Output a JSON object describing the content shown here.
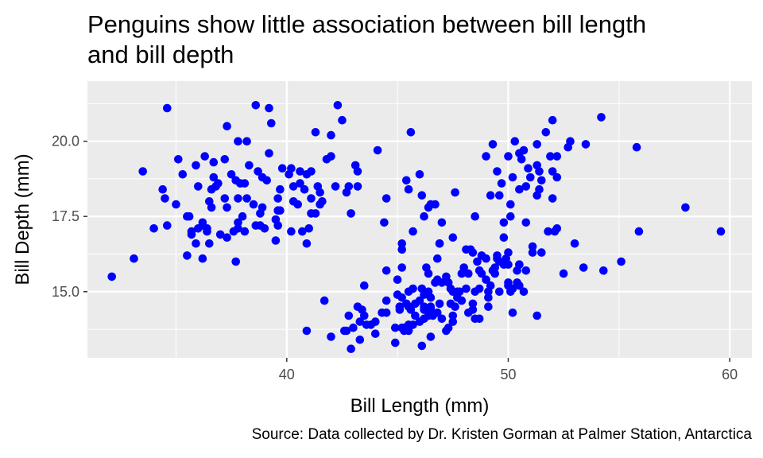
{
  "chart_data": {
    "type": "scatter",
    "title": "Penguins show little association between bill length\n and bill depth",
    "caption": "Source: Data collected by Dr. Kristen Gorman at Palmer Station, Antarctica",
    "xlabel": "Bill Length (mm)",
    "ylabel": "Bill Depth (mm)",
    "xlim": [
      31.0,
      61.0
    ],
    "ylim": [
      12.8,
      22.0
    ],
    "xticks": [
      {
        "value": 40,
        "label": "40"
      },
      {
        "value": 50,
        "label": "50"
      },
      {
        "value": 60,
        "label": "60"
      }
    ],
    "yticks": [
      {
        "value": 15.0,
        "label": "15.0"
      },
      {
        "value": 17.5,
        "label": "17.5"
      },
      {
        "value": 20.0,
        "label": "20.0"
      }
    ],
    "grid": true,
    "point_color": "#0000ff",
    "panel_background": "#ebebeb",
    "points": [
      [
        32.1,
        15.5
      ],
      [
        33.1,
        16.1
      ],
      [
        33.5,
        19.0
      ],
      [
        34.0,
        17.1
      ],
      [
        34.4,
        18.4
      ],
      [
        34.5,
        18.1
      ],
      [
        34.6,
        21.1
      ],
      [
        34.6,
        17.2
      ],
      [
        35.0,
        17.9
      ],
      [
        35.1,
        19.4
      ],
      [
        35.3,
        18.9
      ],
      [
        35.5,
        16.2
      ],
      [
        35.5,
        17.5
      ],
      [
        35.6,
        17.5
      ],
      [
        35.7,
        16.9
      ],
      [
        35.7,
        17.0
      ],
      [
        35.9,
        16.6
      ],
      [
        35.9,
        19.2
      ],
      [
        36.0,
        17.1
      ],
      [
        36.0,
        18.5
      ],
      [
        36.2,
        16.1
      ],
      [
        36.2,
        17.2
      ],
      [
        36.2,
        17.3
      ],
      [
        36.3,
        19.5
      ],
      [
        36.4,
        17.0
      ],
      [
        36.5,
        16.6
      ],
      [
        36.5,
        18.0
      ],
      [
        36.6,
        17.8
      ],
      [
        36.6,
        18.4
      ],
      [
        36.7,
        19.3
      ],
      [
        36.7,
        18.8
      ],
      [
        36.8,
        18.5
      ],
      [
        36.9,
        18.6
      ],
      [
        37.0,
        16.9
      ],
      [
        37.2,
        18.1
      ],
      [
        37.2,
        19.4
      ],
      [
        37.3,
        17.8
      ],
      [
        37.3,
        16.8
      ],
      [
        37.3,
        20.5
      ],
      [
        37.5,
        18.9
      ],
      [
        37.6,
        17.0
      ],
      [
        37.7,
        16.0
      ],
      [
        37.7,
        18.7
      ],
      [
        37.8,
        17.1
      ],
      [
        37.8,
        18.1
      ],
      [
        37.8,
        20.0
      ],
      [
        37.9,
        18.6
      ],
      [
        38.1,
        17.0
      ],
      [
        38.1,
        18.6
      ],
      [
        38.2,
        18.1
      ],
      [
        38.2,
        20.0
      ],
      [
        38.3,
        19.2
      ],
      [
        38.5,
        17.9
      ],
      [
        38.6,
        17.2
      ],
      [
        38.6,
        21.2
      ],
      [
        38.7,
        19.0
      ],
      [
        38.8,
        17.2
      ],
      [
        38.8,
        17.6
      ],
      [
        38.9,
        17.8
      ],
      [
        38.9,
        18.8
      ],
      [
        39.0,
        17.1
      ],
      [
        39.1,
        18.7
      ],
      [
        39.2,
        19.6
      ],
      [
        39.2,
        21.1
      ],
      [
        39.3,
        20.6
      ],
      [
        39.5,
        16.7
      ],
      [
        39.5,
        17.4
      ],
      [
        39.6,
        17.7
      ],
      [
        39.6,
        18.1
      ],
      [
        39.7,
        17.7
      ],
      [
        39.7,
        18.4
      ],
      [
        39.8,
        19.1
      ],
      [
        40.1,
        18.9
      ],
      [
        40.2,
        17.0
      ],
      [
        40.2,
        19.1
      ],
      [
        40.3,
        18.0
      ],
      [
        40.5,
        17.9
      ],
      [
        40.6,
        18.6
      ],
      [
        40.6,
        19.0
      ],
      [
        40.7,
        17.0
      ],
      [
        40.8,
        18.4
      ],
      [
        40.9,
        16.6
      ],
      [
        41.0,
        17.1
      ],
      [
        41.1,
        17.6
      ],
      [
        41.1,
        18.1
      ],
      [
        41.1,
        19.0
      ],
      [
        41.3,
        17.6
      ],
      [
        41.3,
        20.3
      ],
      [
        41.4,
        18.5
      ],
      [
        41.5,
        17.9
      ],
      [
        41.6,
        18.0
      ],
      [
        41.8,
        19.4
      ],
      [
        42.0,
        20.2
      ],
      [
        42.2,
        18.5
      ],
      [
        42.3,
        21.2
      ],
      [
        42.5,
        20.7
      ],
      [
        42.7,
        18.3
      ],
      [
        42.8,
        18.5
      ],
      [
        42.9,
        17.6
      ],
      [
        43.1,
        19.2
      ],
      [
        43.2,
        18.5
      ],
      [
        44.1,
        19.7
      ],
      [
        45.6,
        20.3
      ],
      [
        36.4,
        17.1
      ],
      [
        37.8,
        17.3
      ],
      [
        38.0,
        17.5
      ],
      [
        39.6,
        17.2
      ],
      [
        40.9,
        18.9
      ],
      [
        41.5,
        18.3
      ],
      [
        42.0,
        19.5
      ],
      [
        40.3,
        18.5
      ],
      [
        43.2,
        19.0
      ],
      [
        44.5,
        18.1
      ],
      [
        45.5,
        18.4
      ],
      [
        46.0,
        18.9
      ],
      [
        46.4,
        17.8
      ],
      [
        46.9,
        16.6
      ],
      [
        47.0,
        17.3
      ],
      [
        47.5,
        16.8
      ],
      [
        48.5,
        17.5
      ],
      [
        49.0,
        19.5
      ],
      [
        49.3,
        19.9
      ],
      [
        49.5,
        19.0
      ],
      [
        49.7,
        18.6
      ],
      [
        50.0,
        19.5
      ],
      [
        50.2,
        18.8
      ],
      [
        50.3,
        20.0
      ],
      [
        50.5,
        18.4
      ],
      [
        50.6,
        19.4
      ],
      [
        50.7,
        19.7
      ],
      [
        50.8,
        18.5
      ],
      [
        50.9,
        19.1
      ],
      [
        51.0,
        18.8
      ],
      [
        51.3,
        19.2
      ],
      [
        51.3,
        19.9
      ],
      [
        51.4,
        19.0
      ],
      [
        51.5,
        18.7
      ],
      [
        51.7,
        20.3
      ],
      [
        51.9,
        19.5
      ],
      [
        52.0,
        18.1
      ],
      [
        52.0,
        19.0
      ],
      [
        52.0,
        20.7
      ],
      [
        52.2,
        18.8
      ],
      [
        52.7,
        19.8
      ],
      [
        52.8,
        20.0
      ],
      [
        53.5,
        19.9
      ],
      [
        54.2,
        20.8
      ],
      [
        55.8,
        19.8
      ],
      [
        45.2,
        16.6
      ],
      [
        45.4,
        18.7
      ],
      [
        46.1,
        18.2
      ],
      [
        46.5,
        17.9
      ],
      [
        46.7,
        17.9
      ],
      [
        47.6,
        18.3
      ],
      [
        48.1,
        16.4
      ],
      [
        49.2,
        18.2
      ],
      [
        49.6,
        18.2
      ],
      [
        50.1,
        17.9
      ],
      [
        50.5,
        19.6
      ],
      [
        51.3,
        18.2
      ],
      [
        51.4,
        18.4
      ],
      [
        52.2,
        19.5
      ],
      [
        58.0,
        17.8
      ],
      [
        45.7,
        17.0
      ],
      [
        46.2,
        17.5
      ],
      [
        48.3,
        16.4
      ],
      [
        49.8,
        17.3
      ],
      [
        50.1,
        17.5
      ],
      [
        51.8,
        17.0
      ],
      [
        53.0,
        16.6
      ],
      [
        46.1,
        13.2
      ],
      [
        50.0,
        16.3
      ],
      [
        48.7,
        14.1
      ],
      [
        50.0,
        15.2
      ],
      [
        47.6,
        14.5
      ],
      [
        46.5,
        13.5
      ],
      [
        45.4,
        14.6
      ],
      [
        46.7,
        15.3
      ],
      [
        43.3,
        13.4
      ],
      [
        46.8,
        15.4
      ],
      [
        40.9,
        13.7
      ],
      [
        49.0,
        16.1
      ],
      [
        45.5,
        13.7
      ],
      [
        48.4,
        14.6
      ],
      [
        45.8,
        14.6
      ],
      [
        49.3,
        15.7
      ],
      [
        42.0,
        13.5
      ],
      [
        49.2,
        15.2
      ],
      [
        46.2,
        14.5
      ],
      [
        48.7,
        15.1
      ],
      [
        50.2,
        14.3
      ],
      [
        45.1,
        14.5
      ],
      [
        46.5,
        14.5
      ],
      [
        46.3,
        15.8
      ],
      [
        42.9,
        13.1
      ],
      [
        46.1,
        15.1
      ],
      [
        44.5,
        14.3
      ],
      [
        47.8,
        15.0
      ],
      [
        48.2,
        14.3
      ],
      [
        50.0,
        15.3
      ],
      [
        47.3,
        15.3
      ],
      [
        42.8,
        14.2
      ],
      [
        45.1,
        14.5
      ],
      [
        59.6,
        17.0
      ],
      [
        49.1,
        14.8
      ],
      [
        48.4,
        16.3
      ],
      [
        42.6,
        13.7
      ],
      [
        44.4,
        17.3
      ],
      [
        44.0,
        13.6
      ],
      [
        48.7,
        15.7
      ],
      [
        42.7,
        13.7
      ],
      [
        49.6,
        16.0
      ],
      [
        45.3,
        13.7
      ],
      [
        49.6,
        15.0
      ],
      [
        50.5,
        15.9
      ],
      [
        43.6,
        13.9
      ],
      [
        45.5,
        13.9
      ],
      [
        50.5,
        15.9
      ],
      [
        44.9,
        13.3
      ],
      [
        45.2,
        15.8
      ],
      [
        46.6,
        14.2
      ],
      [
        48.5,
        14.1
      ],
      [
        45.1,
        14.4
      ],
      [
        50.1,
        15.0
      ],
      [
        46.5,
        14.4
      ],
      [
        45.0,
        15.4
      ],
      [
        43.8,
        13.9
      ],
      [
        45.5,
        15.0
      ],
      [
        43.2,
        14.5
      ],
      [
        50.4,
        15.3
      ],
      [
        45.3,
        13.8
      ],
      [
        46.2,
        14.9
      ],
      [
        45.7,
        13.9
      ],
      [
        54.3,
        15.7
      ],
      [
        45.8,
        14.2
      ],
      [
        49.8,
        16.8
      ],
      [
        46.2,
        14.4
      ],
      [
        49.5,
        16.2
      ],
      [
        43.5,
        14.2
      ],
      [
        50.7,
        15.0
      ],
      [
        47.7,
        15.0
      ],
      [
        46.4,
        15.6
      ],
      [
        48.2,
        15.6
      ],
      [
        46.5,
        14.8
      ],
      [
        46.4,
        15.0
      ],
      [
        48.6,
        16.0
      ],
      [
        47.5,
        14.2
      ],
      [
        51.1,
        16.3
      ],
      [
        45.2,
        13.8
      ],
      [
        45.2,
        16.4
      ],
      [
        49.1,
        14.5
      ],
      [
        52.5,
        15.6
      ],
      [
        47.4,
        14.6
      ],
      [
        50.0,
        15.9
      ],
      [
        44.9,
        13.8
      ],
      [
        50.8,
        17.3
      ],
      [
        43.4,
        14.4
      ],
      [
        51.3,
        14.2
      ],
      [
        47.5,
        14.0
      ],
      [
        52.1,
        17.0
      ],
      [
        47.5,
        15.0
      ],
      [
        52.2,
        17.1
      ],
      [
        45.5,
        14.5
      ],
      [
        49.5,
        16.1
      ],
      [
        44.5,
        14.7
      ],
      [
        50.8,
        15.7
      ],
      [
        49.4,
        15.8
      ],
      [
        46.9,
        14.6
      ],
      [
        48.4,
        14.4
      ],
      [
        51.1,
        16.5
      ],
      [
        48.5,
        15.0
      ],
      [
        55.9,
        17.0
      ],
      [
        47.2,
        15.5
      ],
      [
        49.1,
        15.0
      ],
      [
        47.3,
        13.8
      ],
      [
        46.8,
        16.1
      ],
      [
        41.7,
        14.7
      ],
      [
        53.4,
        15.8
      ],
      [
        43.3,
        14.0
      ],
      [
        48.1,
        15.1
      ],
      [
        50.5,
        15.2
      ],
      [
        49.8,
        15.9
      ],
      [
        43.5,
        15.2
      ],
      [
        51.5,
        16.3
      ],
      [
        46.2,
        14.1
      ],
      [
        55.1,
        16.0
      ],
      [
        44.5,
        15.7
      ],
      [
        48.8,
        16.2
      ],
      [
        47.2,
        13.7
      ],
      [
        46.8,
        14.3
      ],
      [
        50.4,
        15.7
      ],
      [
        45.2,
        14.8
      ],
      [
        49.9,
        16.1
      ],
      [
        46.9,
        16.6
      ],
      [
        45.6,
        14.4
      ],
      [
        47.9,
        14.7
      ],
      [
        49.4,
        15.6
      ],
      [
        46.0,
        14.0
      ],
      [
        47.0,
        15.3
      ],
      [
        45.7,
        15.1
      ],
      [
        48.8,
        15.6
      ],
      [
        47.4,
        15.1
      ],
      [
        44.3,
        14.3
      ],
      [
        43.0,
        13.8
      ],
      [
        47.0,
        14.1
      ],
      [
        46.4,
        14.2
      ],
      [
        44.0,
        14.0
      ],
      [
        47.7,
        14.8
      ],
      [
        48.0,
        15.8
      ],
      [
        46.0,
        14.7
      ],
      [
        49.0,
        15.4
      ],
      [
        45.0,
        14.9
      ],
      [
        47.9,
        15.6
      ],
      [
        50.2,
        15.1
      ]
    ]
  }
}
